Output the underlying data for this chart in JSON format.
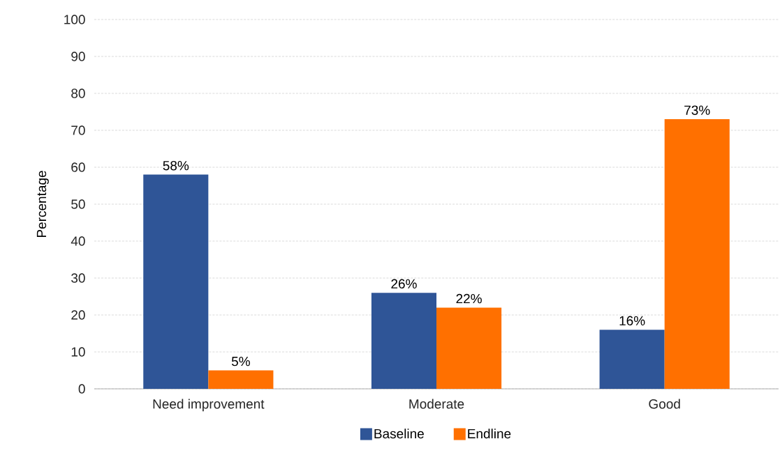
{
  "chart_data": {
    "type": "bar",
    "ylabel": "Percentage",
    "categories": [
      "Need improvement",
      "Moderate",
      "Good"
    ],
    "series": [
      {
        "name": "Baseline",
        "color": "#2f5597",
        "values": [
          58,
          26,
          16
        ],
        "value_labels": [
          "58%",
          "26%",
          "16%"
        ]
      },
      {
        "name": "Endline",
        "color": "#ff7000",
        "values": [
          5,
          22,
          73
        ],
        "value_labels": [
          "5%",
          "22%",
          "73%"
        ]
      }
    ],
    "ylim": [
      0,
      100
    ],
    "yticks": [
      0,
      10,
      20,
      30,
      40,
      50,
      60,
      70,
      80,
      90,
      100
    ],
    "grid": "y",
    "legend": "bottom"
  }
}
